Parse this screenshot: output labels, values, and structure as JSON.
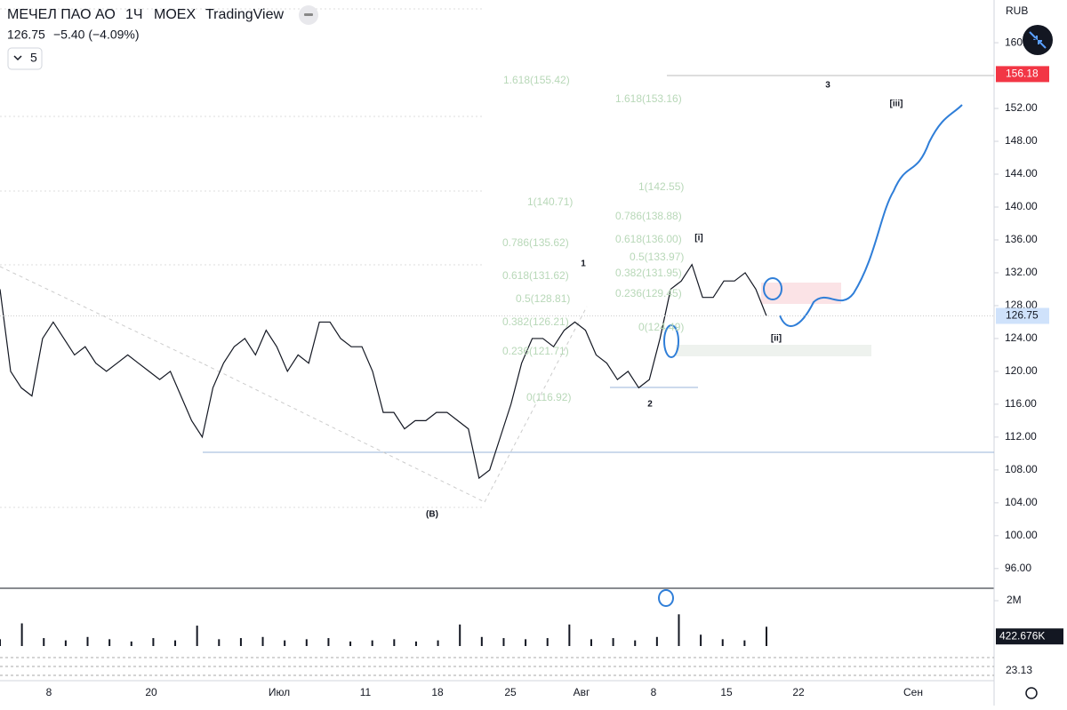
{
  "header": {
    "symbol": "МЕЧЕЛ ПАО АО",
    "interval": "1Ч",
    "exchange": "MOEX",
    "source": "TradingView",
    "last": "126.75",
    "change": "−5.40 (−4.09%)",
    "count": "5",
    "currency": "RUB"
  },
  "chart_data": {
    "type": "line",
    "color": "#131722",
    "values": [
      130,
      120,
      118,
      117,
      124,
      126,
      124,
      122,
      123,
      121,
      120,
      121,
      122,
      121,
      120,
      119,
      120,
      117,
      114,
      112,
      118,
      121,
      123,
      124,
      122,
      125,
      123,
      120,
      122,
      121,
      126,
      126,
      124,
      123,
      123,
      120,
      115,
      115,
      113,
      114,
      114,
      115,
      115,
      114,
      113,
      107,
      108,
      112,
      116,
      121,
      124,
      124,
      123,
      125,
      126,
      125,
      122,
      121,
      119,
      120,
      118,
      119,
      124,
      130,
      131,
      133,
      129,
      129,
      131,
      131,
      132,
      130,
      126.75
    ],
    "ylim": [
      93.6,
      165.2
    ],
    "yticks": [
      {
        "value": 96,
        "label": "96.00"
      },
      {
        "value": 100,
        "label": "100.00"
      },
      {
        "value": 104,
        "label": "104.00"
      },
      {
        "value": 108,
        "label": "108.00"
      },
      {
        "value": 112,
        "label": "112.00"
      },
      {
        "value": 116,
        "label": "116.00"
      },
      {
        "value": 120,
        "label": "120.00"
      },
      {
        "value": 124,
        "label": "124.00"
      },
      {
        "value": 128,
        "label": "128.00"
      },
      {
        "value": 132,
        "label": "132.00"
      },
      {
        "value": 136,
        "label": "136.00"
      },
      {
        "value": 140,
        "label": "140.00"
      },
      {
        "value": 144,
        "label": "144.00"
      },
      {
        "value": 148,
        "label": "148.00"
      },
      {
        "value": 152,
        "label": "152.00"
      },
      {
        "value": 160,
        "label": "160.00"
      }
    ],
    "last_price": 126.75,
    "target_price": 156.18,
    "x_labels": [
      "8",
      "20",
      "Июл",
      "11",
      "18",
      "25",
      "Авг",
      "8",
      "15",
      "22",
      "Сен"
    ],
    "fib_labels": [
      "1.618(155.42)",
      "1.618(153.16)",
      "1(142.55)",
      "1(140.71)",
      "0.786(138.88)",
      "0.786(135.62)",
      "0.618(136.00)",
      "0.5(133.97)",
      "0.382(131.95)",
      "0.618(131.62)",
      "0.236(129.45)",
      "0.5(128.81)",
      "0.382(126.21)",
      "0(124.49)",
      "0.236(121.71)",
      "0(116.92)"
    ],
    "wave_labels": [
      "1",
      "2",
      "3",
      "[i]",
      "[ii]",
      "[iii]",
      "(B)"
    ],
    "volume": {
      "values": [
        300000,
        1000000,
        350000,
        250000,
        400000,
        300000,
        200000,
        350000,
        250000,
        900000,
        300000,
        350000,
        400000,
        250000,
        300000,
        350000,
        200000,
        250000,
        300000,
        200000,
        250000,
        950000,
        400000,
        350000,
        300000,
        350000,
        950000,
        300000,
        350000,
        250000,
        400000,
        1400000,
        500000,
        300000,
        250000,
        850000
      ],
      "value_labels": [
        null,
        null,
        null,
        null,
        null,
        null,
        null,
        null,
        null,
        null,
        null,
        null,
        null,
        null,
        null,
        null,
        null,
        null,
        null,
        null,
        null,
        null,
        null,
        null,
        null,
        null,
        null,
        null,
        null,
        null,
        null,
        null,
        null,
        null,
        null,
        null
      ],
      "yticks": [
        {
          "value": 2000000,
          "label": "2M"
        }
      ],
      "last": 422676,
      "last_label": "422.676K"
    },
    "indicator_value": "23.13"
  }
}
